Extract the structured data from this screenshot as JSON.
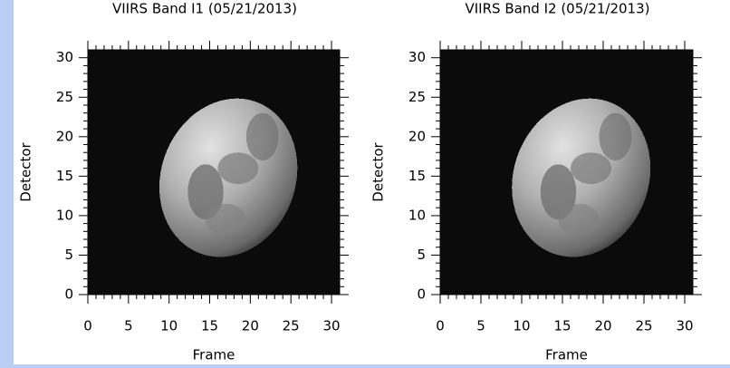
{
  "chart_data": [
    {
      "type": "image",
      "title": "VIIRS Band I1 (05/21/2013)",
      "xlabel": "Frame",
      "ylabel": "Detector",
      "xlim": [
        0,
        31
      ],
      "ylim": [
        0,
        31
      ],
      "xticks": [
        0,
        5,
        10,
        15,
        20,
        25,
        30
      ],
      "yticks": [
        0,
        5,
        10,
        15,
        20,
        25,
        30
      ]
    },
    {
      "type": "image",
      "title": "VIIRS Band I2 (05/21/2013)",
      "xlabel": "Frame",
      "ylabel": "Detector",
      "xlim": [
        0,
        31
      ],
      "ylim": [
        0,
        31
      ],
      "xticks": [
        0,
        5,
        10,
        15,
        20,
        25,
        30
      ],
      "yticks": [
        0,
        5,
        10,
        15,
        20,
        25,
        30
      ]
    }
  ]
}
